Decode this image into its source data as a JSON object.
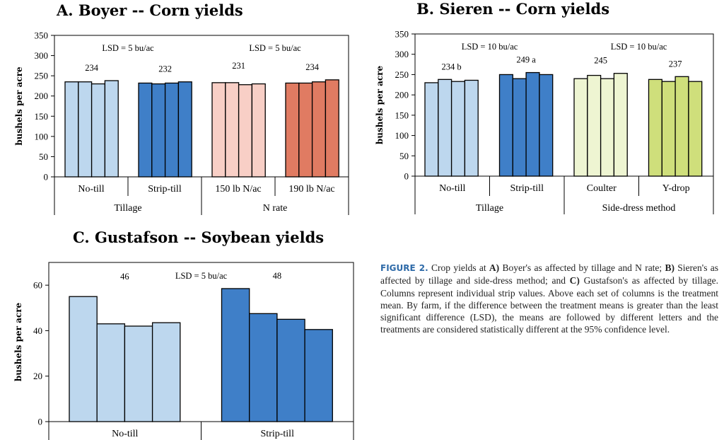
{
  "titles": {
    "a": "A. Boyer -- Corn yields",
    "b": "B. Sieren -- Corn yields",
    "c": "C. Gustafson -- Soybean yields"
  },
  "caption": {
    "lead": "FIGURE 2.",
    "t1": " Crop yields at ",
    "a": "A)",
    "t2": " Boyer's as affected by tillage and N rate; ",
    "b": "B)",
    "t3": " Sieren's as affected by tillage and side-dress method; and ",
    "c": "C)",
    "t4": " Gustafson's as affected by tillage. Columns represent individual strip values. Above each set of columns is the treatment mean. By farm, if the difference between the treatment means is greater than the least significant difference (LSD), the means are followed by different letters and the treatments are considered statistically different at the 95% confidence level."
  },
  "colors": {
    "light_blue": "#bdd7ee",
    "dark_blue": "#3f7fc8",
    "light_pink": "#f8cfc6",
    "salmon": "#e07b62",
    "pale_green": "#eef5d2",
    "olive_green": "#cfdf7b",
    "border": "#000000"
  },
  "chart_data": [
    {
      "type": "bar",
      "title": "A. Boyer -- Corn yields",
      "ylabel": "bushels per acre",
      "ylim": [
        0,
        350
      ],
      "yticks": [
        0,
        50,
        100,
        150,
        200,
        250,
        300,
        350
      ],
      "groups": [
        {
          "name": "No-till",
          "mean": "234",
          "color": "light_blue",
          "values": [
            235,
            235,
            230,
            238
          ]
        },
        {
          "name": "Strip-till",
          "mean": "232",
          "color": "dark_blue",
          "values": [
            232,
            230,
            232,
            235
          ]
        },
        {
          "name": "150 lb N/ac",
          "mean": "231",
          "color": "light_pink",
          "values": [
            233,
            233,
            228,
            230
          ]
        },
        {
          "name": "190 lb N/ac",
          "mean": "234",
          "color": "salmon",
          "values": [
            232,
            232,
            235,
            240
          ]
        }
      ],
      "factors": [
        {
          "name": "Tillage",
          "groups": [
            0,
            1
          ],
          "lsd": "LSD = 5 bu/ac"
        },
        {
          "name": "N rate",
          "groups": [
            2,
            3
          ],
          "lsd": "LSD = 5 bu/ac"
        }
      ]
    },
    {
      "type": "bar",
      "title": "B. Sieren -- Corn yields",
      "ylabel": "bushels per acre",
      "ylim": [
        0,
        350
      ],
      "yticks": [
        0,
        50,
        100,
        150,
        200,
        250,
        300,
        350
      ],
      "groups": [
        {
          "name": "No-till",
          "mean": "234 b",
          "color": "light_blue",
          "values": [
            230,
            238,
            233,
            236
          ]
        },
        {
          "name": "Strip-till",
          "mean": "249 a",
          "color": "dark_blue",
          "values": [
            250,
            240,
            255,
            250
          ]
        },
        {
          "name": "Coulter",
          "mean": "245",
          "color": "pale_green",
          "values": [
            240,
            248,
            240,
            253
          ]
        },
        {
          "name": "Y-drop",
          "mean": "237",
          "color": "olive_green",
          "values": [
            238,
            233,
            245,
            233
          ]
        }
      ],
      "factors": [
        {
          "name": "Tillage",
          "groups": [
            0,
            1
          ],
          "lsd": "LSD = 10 bu/ac"
        },
        {
          "name": "Side-dress method",
          "groups": [
            2,
            3
          ],
          "lsd": "LSD = 10 bu/ac"
        }
      ]
    },
    {
      "type": "bar",
      "title": "C. Gustafson -- Soybean yields",
      "ylabel": "bushels per acre",
      "ylim": [
        0,
        70
      ],
      "yticks": [
        0,
        20,
        40,
        60
      ],
      "groups": [
        {
          "name": "No-till",
          "mean": "46",
          "color": "light_blue",
          "values": [
            55,
            43,
            42,
            43.5
          ]
        },
        {
          "name": "Strip-till",
          "mean": "48",
          "color": "dark_blue",
          "values": [
            58.5,
            47.5,
            45,
            40.5
          ]
        }
      ],
      "factors": [
        {
          "name": "",
          "groups": [
            0,
            1
          ],
          "lsd": "LSD = 5 bu/ac"
        }
      ]
    }
  ]
}
